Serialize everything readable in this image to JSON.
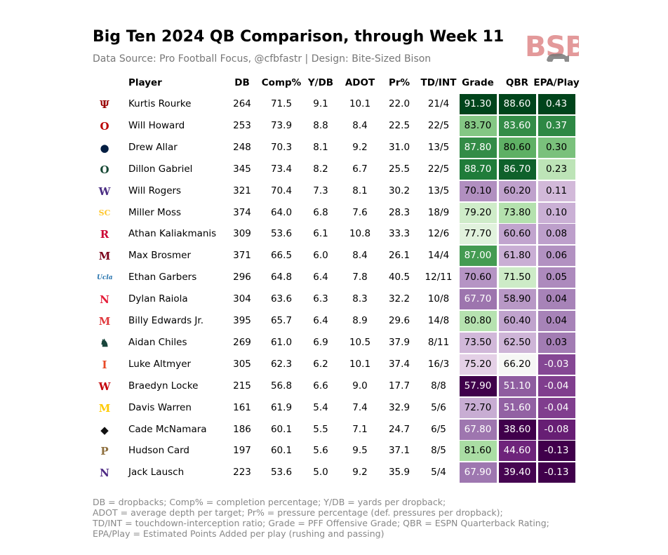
{
  "title": "Big Ten 2024 QB Comparison, through Week 11",
  "subtitle": "Data Source: Pro Football Focus, @cfbfastr | Design: Bite-Sized Bison",
  "brand_logo_text": "BSB",
  "colors": {
    "green_dark": "#00441b",
    "green_mid": "#238b45",
    "green_light": "#a1d99b",
    "purple_light": "#e7d4e8",
    "purple_mid": "#9970ab",
    "purple_dark": "#40004b"
  },
  "chart_data": {
    "type": "table",
    "columns": [
      "Player",
      "DB",
      "Comp%",
      "Y/DB",
      "ADOT",
      "Pr%",
      "TD/INT",
      "Grade",
      "QBR",
      "EPA/Play"
    ],
    "rows": [
      {
        "team_logo": "indiana-logo",
        "logo_glyph": "Ψ",
        "logo_color": "#990000",
        "player": "Kurtis Rourke",
        "db": "264",
        "comp": "71.5",
        "ydb": "9.1",
        "adot": "10.1",
        "pr": "22.0",
        "tdint": "21/4",
        "grade": "91.30",
        "qbr": "88.60",
        "epa": "0.43"
      },
      {
        "team_logo": "ohio-state-logo",
        "logo_glyph": "O",
        "logo_color": "#bb0000",
        "player": "Will Howard",
        "db": "253",
        "comp": "73.9",
        "ydb": "8.8",
        "adot": "8.4",
        "pr": "22.5",
        "tdint": "22/5",
        "grade": "83.70",
        "qbr": "83.60",
        "epa": "0.37"
      },
      {
        "team_logo": "penn-state-logo",
        "logo_glyph": "●",
        "logo_color": "#041e42",
        "player": "Drew Allar",
        "db": "248",
        "comp": "70.3",
        "ydb": "8.1",
        "adot": "9.2",
        "pr": "31.0",
        "tdint": "13/5",
        "grade": "87.80",
        "qbr": "80.60",
        "epa": "0.30"
      },
      {
        "team_logo": "oregon-logo",
        "logo_glyph": "O",
        "logo_color": "#154733",
        "player": "Dillon Gabriel",
        "db": "345",
        "comp": "73.4",
        "ydb": "8.2",
        "adot": "6.7",
        "pr": "25.5",
        "tdint": "22/5",
        "grade": "88.70",
        "qbr": "86.70",
        "epa": "0.23"
      },
      {
        "team_logo": "washington-logo",
        "logo_glyph": "W",
        "logo_color": "#4b2e83",
        "player": "Will Rogers",
        "db": "321",
        "comp": "70.4",
        "ydb": "7.3",
        "adot": "8.1",
        "pr": "30.2",
        "tdint": "13/5",
        "grade": "70.10",
        "qbr": "60.20",
        "epa": "0.11"
      },
      {
        "team_logo": "usc-logo",
        "logo_glyph": "SC",
        "logo_color": "#ffc72c",
        "player": "Miller Moss",
        "db": "374",
        "comp": "64.0",
        "ydb": "6.8",
        "adot": "7.6",
        "pr": "28.3",
        "tdint": "18/9",
        "grade": "79.20",
        "qbr": "73.80",
        "epa": "0.10"
      },
      {
        "team_logo": "rutgers-logo",
        "logo_glyph": "R",
        "logo_color": "#cc0033",
        "player": "Athan Kaliakmanis",
        "db": "309",
        "comp": "53.6",
        "ydb": "6.1",
        "adot": "10.8",
        "pr": "33.3",
        "tdint": "12/6",
        "grade": "77.70",
        "qbr": "60.60",
        "epa": "0.08"
      },
      {
        "team_logo": "minnesota-logo",
        "logo_glyph": "M",
        "logo_color": "#7a0019",
        "player": "Max Brosmer",
        "db": "371",
        "comp": "66.5",
        "ydb": "6.0",
        "adot": "8.4",
        "pr": "26.1",
        "tdint": "14/4",
        "grade": "87.00",
        "qbr": "61.80",
        "epa": "0.06"
      },
      {
        "team_logo": "ucla-logo",
        "logo_glyph": "Ucla",
        "logo_color": "#2774ae",
        "player": "Ethan Garbers",
        "db": "296",
        "comp": "64.8",
        "ydb": "6.4",
        "adot": "7.8",
        "pr": "40.5",
        "tdint": "12/11",
        "grade": "70.60",
        "qbr": "71.50",
        "epa": "0.05"
      },
      {
        "team_logo": "nebraska-logo",
        "logo_glyph": "N",
        "logo_color": "#e41c38",
        "player": "Dylan Raiola",
        "db": "304",
        "comp": "63.6",
        "ydb": "6.3",
        "adot": "8.3",
        "pr": "32.2",
        "tdint": "10/8",
        "grade": "67.70",
        "qbr": "58.90",
        "epa": "0.04"
      },
      {
        "team_logo": "maryland-logo",
        "logo_glyph": "M",
        "logo_color": "#e03a3e",
        "player": "Billy Edwards Jr.",
        "db": "395",
        "comp": "65.7",
        "ydb": "6.4",
        "adot": "8.9",
        "pr": "29.6",
        "tdint": "14/8",
        "grade": "80.80",
        "qbr": "60.40",
        "epa": "0.04"
      },
      {
        "team_logo": "michigan-state-logo",
        "logo_glyph": "♞",
        "logo_color": "#18453b",
        "player": "Aidan Chiles",
        "db": "269",
        "comp": "61.0",
        "ydb": "6.9",
        "adot": "10.5",
        "pr": "37.9",
        "tdint": "8/11",
        "grade": "73.50",
        "qbr": "62.50",
        "epa": "0.03"
      },
      {
        "team_logo": "illinois-logo",
        "logo_glyph": "I",
        "logo_color": "#e84a27",
        "player": "Luke Altmyer",
        "db": "305",
        "comp": "62.3",
        "ydb": "6.2",
        "adot": "10.1",
        "pr": "37.4",
        "tdint": "16/3",
        "grade": "75.20",
        "qbr": "66.20",
        "epa": "-0.03"
      },
      {
        "team_logo": "wisconsin-logo",
        "logo_glyph": "W",
        "logo_color": "#c5050c",
        "player": "Braedyn Locke",
        "db": "215",
        "comp": "56.8",
        "ydb": "6.6",
        "adot": "9.0",
        "pr": "17.7",
        "tdint": "8/8",
        "grade": "57.90",
        "qbr": "51.10",
        "epa": "-0.04"
      },
      {
        "team_logo": "michigan-logo",
        "logo_glyph": "M",
        "logo_color": "#ffcb05",
        "player": "Davis Warren",
        "db": "161",
        "comp": "61.9",
        "ydb": "5.4",
        "adot": "7.4",
        "pr": "32.9",
        "tdint": "5/6",
        "grade": "72.70",
        "qbr": "51.60",
        "epa": "-0.04"
      },
      {
        "team_logo": "iowa-logo",
        "logo_glyph": "◆",
        "logo_color": "#111111",
        "player": "Cade McNamara",
        "db": "186",
        "comp": "60.1",
        "ydb": "5.5",
        "adot": "7.1",
        "pr": "24.7",
        "tdint": "6/5",
        "grade": "67.80",
        "qbr": "38.60",
        "epa": "-0.08"
      },
      {
        "team_logo": "purdue-logo",
        "logo_glyph": "P",
        "logo_color": "#8e6f3e",
        "player": "Hudson Card",
        "db": "197",
        "comp": "60.1",
        "ydb": "5.6",
        "adot": "9.5",
        "pr": "37.1",
        "tdint": "8/5",
        "grade": "81.60",
        "qbr": "44.60",
        "epa": "-0.13"
      },
      {
        "team_logo": "northwestern-logo",
        "logo_glyph": "N",
        "logo_color": "#4e2a84",
        "player": "Jack Lausch",
        "db": "223",
        "comp": "53.6",
        "ydb": "5.0",
        "adot": "9.2",
        "pr": "35.9",
        "tdint": "5/4",
        "grade": "67.90",
        "qbr": "39.40",
        "epa": "-0.13"
      }
    ]
  },
  "footnotes": [
    "DB = dropbacks; Comp% = completion percentage; Y/DB = yards per dropback;",
    "ADOT = average depth per target; Pr% = pressure percentage (def. pressures per dropback);",
    "TD/INT = touchdown-interception ratio; Grade = PFF Offensive Grade; QBR = ESPN Quarterback Rating;",
    "EPA/Play = Estimated Points Added per play (rushing and passing)"
  ]
}
